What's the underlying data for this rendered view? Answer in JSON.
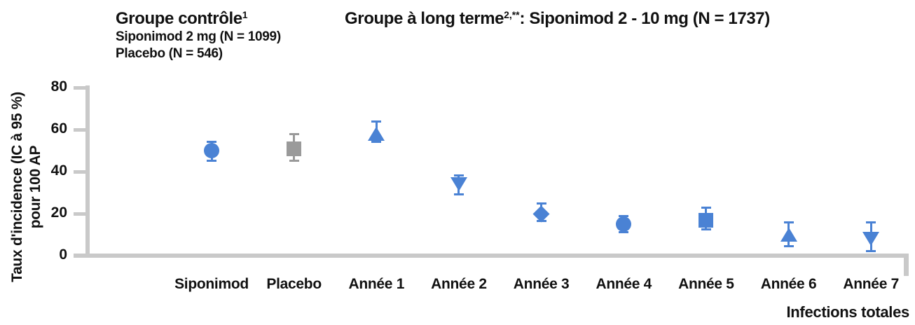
{
  "header": {
    "control_group": {
      "title": "Groupe contrôle",
      "title_sup": "1",
      "line1": "Siponimod 2 mg (N = 1099)",
      "line2": "Placebo (N = 546)"
    },
    "long_term_group": {
      "title": "Groupe à long terme",
      "title_sup": "2,**",
      "title_rest": ": Siponimod 2 - 10 mg (N = 1737)"
    }
  },
  "chart_data": {
    "type": "scatter",
    "title": "",
    "ylabel_line1": "Taux d'incidence (IC à 95 %)",
    "ylabel_line2": "pour 100 AP",
    "xlabel_right": "Infections totales",
    "ylim": [
      0,
      80
    ],
    "yticks": [
      0,
      20,
      40,
      60,
      80
    ],
    "grid": false,
    "legend": "none",
    "categories": [
      "Siponimod",
      "Placebo",
      "Année 1",
      "Année 2",
      "Année 3",
      "Année 4",
      "Année 5",
      "Année 6",
      "Année 7"
    ],
    "points": [
      {
        "label": "Siponimod",
        "value": 50,
        "ci_low": 45,
        "ci_high": 54.5,
        "marker": "circle",
        "color": "#4a82d4"
      },
      {
        "label": "Placebo",
        "value": 51,
        "ci_low": 45,
        "ci_high": 58,
        "marker": "square",
        "color": "#9a9a9a"
      },
      {
        "label": "Année 1",
        "value": 58,
        "ci_low": 54,
        "ci_high": 64,
        "marker": "triangle-up",
        "color": "#4a82d4"
      },
      {
        "label": "Année 2",
        "value": 34,
        "ci_low": 29,
        "ci_high": 38.5,
        "marker": "triangle-down",
        "color": "#4a82d4"
      },
      {
        "label": "Année 3",
        "value": 20,
        "ci_low": 16.5,
        "ci_high": 25,
        "marker": "diamond",
        "color": "#4a82d4"
      },
      {
        "label": "Année 4",
        "value": 15,
        "ci_low": 11,
        "ci_high": 19,
        "marker": "circle",
        "color": "#4a82d4"
      },
      {
        "label": "Année 5",
        "value": 17,
        "ci_low": 12.5,
        "ci_high": 23,
        "marker": "square",
        "color": "#4a82d4"
      },
      {
        "label": "Année 6",
        "value": 10,
        "ci_low": 4.5,
        "ci_high": 16,
        "marker": "triangle-up",
        "color": "#4a82d4"
      },
      {
        "label": "Année 7",
        "value": 8,
        "ci_low": 2,
        "ci_high": 16,
        "marker": "triangle-down",
        "color": "#4a82d4"
      }
    ]
  },
  "colors": {
    "blue": "#4a82d4",
    "gray_marker": "#9a9a9a",
    "axis_gray": "#c9c9c9",
    "text": "#111111"
  }
}
